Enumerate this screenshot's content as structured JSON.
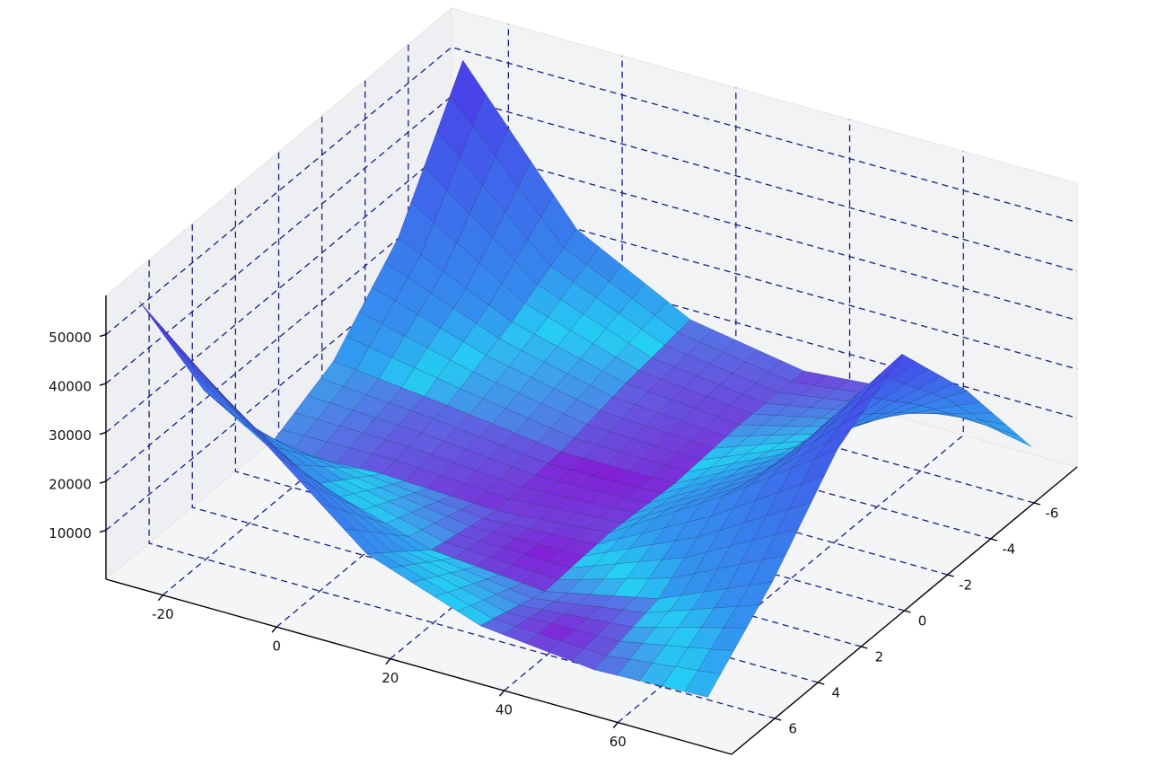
{
  "chart_data": {
    "type": "surface",
    "x": [
      -28,
      -8,
      12,
      32,
      52,
      72
    ],
    "y": [
      -8,
      -5,
      -2,
      1,
      4,
      7
    ],
    "z": [
      [
        48000,
        20000,
        8000,
        4000,
        6000,
        1500
      ],
      [
        22700,
        12000,
        6000,
        4000,
        10000,
        24000
      ],
      [
        8500,
        6000,
        3000,
        3000,
        15000,
        42500
      ],
      [
        2000,
        3000,
        2000,
        4000,
        18000,
        34000
      ],
      [
        24600,
        12000,
        5000,
        3000,
        8000,
        18000
      ],
      [
        53900,
        34000,
        15200,
        7000,
        4500,
        5400
      ]
    ],
    "xlim": [
      -30,
      80
    ],
    "ylim": [
      -8,
      8
    ],
    "zlim": [
      0,
      58000
    ],
    "xticks": [
      -20,
      0,
      20,
      40,
      60
    ],
    "yticks": [
      -6,
      -4,
      -2,
      0,
      2,
      4,
      6
    ],
    "zticks": [
      10000,
      20000,
      30000,
      40000,
      50000
    ],
    "colormap": [
      "#8a12d4",
      "#24cff4",
      "#4a3ae8"
    ],
    "edge_color": "#1a1a4a",
    "grid": true,
    "grid_color": "#1c1c80"
  }
}
